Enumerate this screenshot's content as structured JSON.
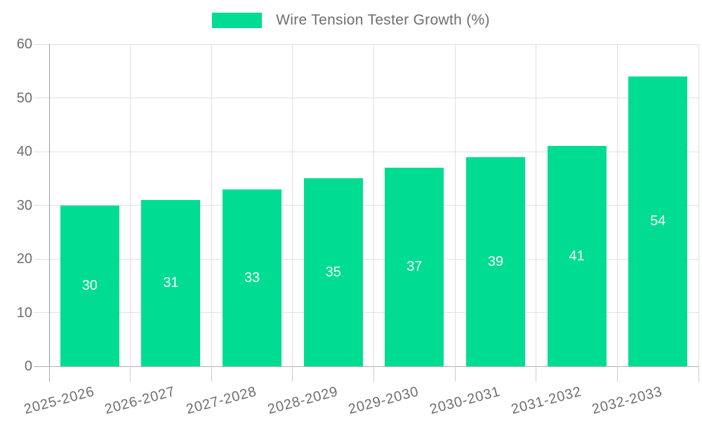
{
  "chart_data": {
    "type": "bar",
    "title": "Wire Tension Tester Growth (%)",
    "categories": [
      "2025-2026",
      "2026-2027",
      "2027-2028",
      "2028-2029",
      "2029-2030",
      "2030-2031",
      "2031-2032",
      "2032-2033"
    ],
    "values": [
      30,
      31,
      33,
      35,
      37,
      39,
      41,
      54
    ],
    "xlabel": "",
    "ylabel": "",
    "ylim": [
      0,
      60
    ],
    "y_ticks": [
      0,
      10,
      20,
      30,
      40,
      50,
      60
    ],
    "grid": true,
    "legend_position": "top-center",
    "x_label_rotation_deg": -15,
    "value_label_position": "inside-center"
  },
  "legend": {
    "label": "Wire Tension Tester Growth (%)"
  },
  "colors": {
    "bar": "#00DC92",
    "grid": "#e0e0e0",
    "zero_line": "#b0b0b0",
    "axis_line": "#999999",
    "tick": "#cccccc",
    "text": "#6e6e6e",
    "value_label": "#ffffff",
    "background": "#ffffff"
  }
}
